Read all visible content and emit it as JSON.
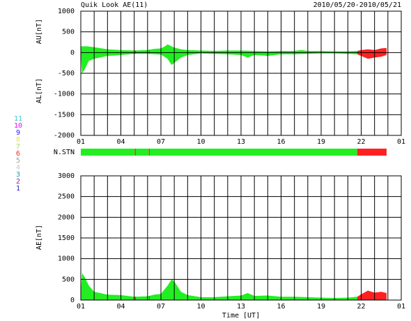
{
  "header": {
    "title": "Quik Look AE(11)",
    "date": "2010/05/20-2010/05/21"
  },
  "station_legend": [
    {
      "label": "11",
      "color": "#33cccc"
    },
    {
      "label": "10",
      "color": "#ff00ff"
    },
    {
      "label": "9",
      "color": "#2020ff"
    },
    {
      "label": "8",
      "color": "#e8e840"
    },
    {
      "label": "7",
      "color": "#a8d860"
    },
    {
      "label": "6",
      "color": "#ff2020"
    },
    {
      "label": "5",
      "color": "#a0a0a0"
    },
    {
      "label": "4",
      "color": "#c8c8c8"
    },
    {
      "label": "3",
      "color": "#20a0a0"
    },
    {
      "label": "2",
      "color": "#a020a0"
    },
    {
      "label": "1",
      "color": "#2020c0"
    }
  ],
  "nstn": {
    "label": "N.STN",
    "segments": [
      {
        "x": [
          0,
          4.05
        ],
        "color": "#22ee22"
      },
      {
        "x": [
          4.05,
          4.12
        ],
        "color": "#ff2020"
      },
      {
        "x": [
          4.12,
          5.1
        ],
        "color": "#22ee22"
      },
      {
        "x": [
          5.1,
          5.17
        ],
        "color": "#ff2020"
      },
      {
        "x": [
          5.17,
          20.7
        ],
        "color": "#22ee22"
      },
      {
        "x": [
          20.7,
          22.9
        ],
        "color": "#ff2020"
      }
    ]
  },
  "chart_data": [
    {
      "type": "area",
      "ylabels": [
        "AU[nT]",
        "AL[nT]"
      ],
      "xlim": [
        0,
        24
      ],
      "xticks": [
        {
          "value": 0,
          "label": "01"
        },
        {
          "value": 3,
          "label": "04"
        },
        {
          "value": 6,
          "label": "07"
        },
        {
          "value": 9,
          "label": "10"
        },
        {
          "value": 12,
          "label": "13"
        },
        {
          "value": 15,
          "label": "16"
        },
        {
          "value": 18,
          "label": "19"
        },
        {
          "value": 21,
          "label": "22"
        },
        {
          "value": 24,
          "label": "01"
        }
      ],
      "xgrid": [
        0,
        1,
        2,
        3,
        4,
        5,
        6,
        7,
        8,
        9,
        10,
        11,
        12,
        13,
        14,
        15,
        16,
        17,
        18,
        19,
        20,
        21,
        22,
        23,
        24
      ],
      "ylim": [
        -2000,
        1000
      ],
      "yticks": [
        1000,
        500,
        0,
        -500,
        -1000,
        -1500,
        -2000
      ],
      "series": [
        {
          "name": "AU",
          "x": [
            0,
            0.5,
            1,
            2,
            3,
            4,
            5,
            5.5,
            6,
            6.3,
            6.5,
            7,
            7.5,
            8,
            9,
            10,
            11,
            12,
            13,
            14,
            15,
            16,
            16.5,
            17,
            18,
            19,
            20,
            20.7,
            21,
            21.5,
            22,
            22.5,
            22.9
          ],
          "values": [
            150,
            150,
            130,
            80,
            60,
            50,
            60,
            90,
            100,
            150,
            200,
            120,
            80,
            60,
            50,
            40,
            50,
            50,
            40,
            30,
            40,
            40,
            60,
            40,
            40,
            30,
            30,
            40,
            60,
            80,
            60,
            100,
            110
          ]
        },
        {
          "name": "AL",
          "x": [
            0,
            0.1,
            0.3,
            0.6,
            1,
            2,
            3,
            4,
            5,
            6,
            6.5,
            6.8,
            7,
            7.5,
            8,
            9,
            10,
            11,
            12,
            12.5,
            13,
            14,
            15,
            16,
            17,
            18,
            19,
            20,
            20.7,
            21,
            21.5,
            22,
            22.5,
            22.9
          ],
          "values": [
            -50,
            -500,
            -400,
            -200,
            -150,
            -80,
            -60,
            -30,
            -30,
            -50,
            -150,
            -300,
            -250,
            -120,
            -60,
            -20,
            -30,
            -40,
            -60,
            -120,
            -60,
            -80,
            -40,
            -40,
            -30,
            -20,
            -20,
            -30,
            -40,
            -80,
            -150,
            -120,
            -100,
            -60
          ]
        }
      ]
    },
    {
      "type": "area",
      "ylabels": [
        "AE[nT]"
      ],
      "xlabel": "Time [UT]",
      "xlim": [
        0,
        24
      ],
      "xticks": [
        {
          "value": 0,
          "label": "01"
        },
        {
          "value": 3,
          "label": "04"
        },
        {
          "value": 6,
          "label": "07"
        },
        {
          "value": 9,
          "label": "10"
        },
        {
          "value": 12,
          "label": "13"
        },
        {
          "value": 15,
          "label": "16"
        },
        {
          "value": 18,
          "label": "19"
        },
        {
          "value": 21,
          "label": "22"
        },
        {
          "value": 24,
          "label": "01"
        }
      ],
      "xgrid": [
        0,
        1,
        2,
        3,
        4,
        5,
        6,
        7,
        8,
        9,
        10,
        11,
        12,
        13,
        14,
        15,
        16,
        17,
        18,
        19,
        20,
        21,
        22,
        23,
        24
      ],
      "ylim": [
        0,
        3000
      ],
      "yticks": [
        3000,
        2500,
        2000,
        1500,
        1000,
        500,
        0
      ],
      "series": [
        {
          "name": "AE",
          "x": [
            0,
            0.1,
            0.3,
            0.6,
            1,
            2,
            3,
            4,
            5,
            5.5,
            6,
            6.5,
            6.8,
            7,
            7.5,
            8,
            9,
            10,
            11,
            12,
            12.5,
            13,
            14,
            15,
            16,
            17,
            18,
            19,
            20,
            20.7,
            21,
            21.5,
            22,
            22.5,
            22.9
          ],
          "values": [
            200,
            650,
            550,
            350,
            200,
            130,
            120,
            80,
            90,
            130,
            150,
            350,
            500,
            450,
            200,
            120,
            70,
            70,
            90,
            110,
            170,
            100,
            110,
            80,
            80,
            70,
            60,
            50,
            60,
            80,
            140,
            230,
            180,
            200,
            170
          ]
        }
      ]
    }
  ]
}
